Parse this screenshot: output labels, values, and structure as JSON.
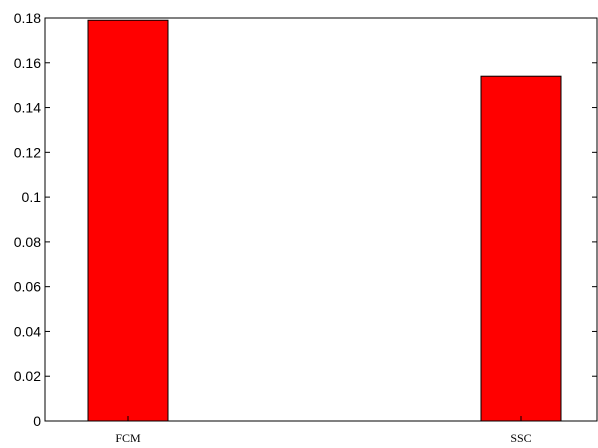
{
  "chart_data": {
    "type": "bar",
    "categories": [
      "FCM",
      "SSC"
    ],
    "values": [
      0.179,
      0.154
    ],
    "title": "",
    "xlabel": "",
    "ylabel": "",
    "ylim": [
      0,
      0.18
    ],
    "yticks": [
      0,
      0.02,
      0.04,
      0.06,
      0.08,
      0.1,
      0.12,
      0.14,
      0.16,
      0.18
    ],
    "ytick_labels": [
      "0",
      "0.02",
      "0.04",
      "0.06",
      "0.08",
      "0.1",
      "0.12",
      "0.14",
      "0.16",
      "0.18"
    ],
    "grid": false,
    "legend": "none",
    "bar_color": "#ff0000",
    "bar_edge_color": "#000000"
  }
}
